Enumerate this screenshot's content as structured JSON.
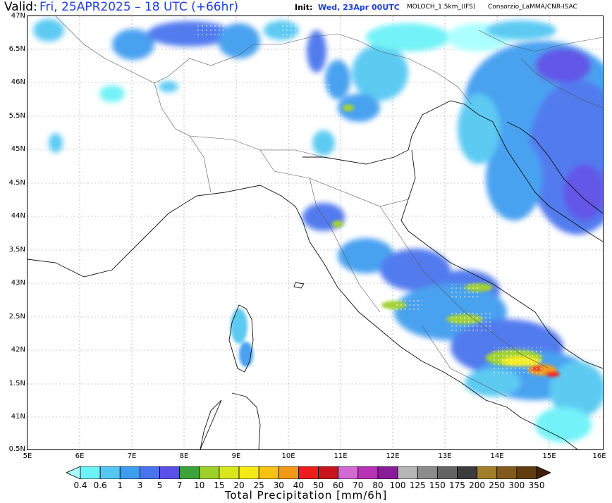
{
  "header": {
    "valid_label": "Valid:",
    "valid_value": "Fri, 25APR2025 – 18 UTC (+66hr)",
    "init_label": "Init:",
    "init_value": "Wed, 23Apr 00UTC",
    "model": "MOLOCH_1.5km_(IFS)",
    "source": "Consorzio_LaMMA/CNR-ISAC"
  },
  "map": {
    "lat_labels": [
      "47N",
      "6.5N",
      "46N",
      "5.5N",
      "45N",
      "4.5N",
      "44N",
      "3.5N",
      "43N",
      "2.5N",
      "42N",
      "1.5N",
      "41N",
      "0.5N"
    ],
    "lon_labels": [
      "5E",
      "6E",
      "7E",
      "8E",
      "9E",
      "10E",
      "11E",
      "12E",
      "13E",
      "14E",
      "15E",
      "16E"
    ],
    "lat_range": [
      40.5,
      47
    ],
    "lon_range": [
      5,
      16
    ],
    "grid": true
  },
  "colorbar": {
    "title": "Total Precipitation [mm/6h]",
    "ticks": [
      "0.4",
      "0.6",
      "1",
      "3",
      "5",
      "7",
      "10",
      "15",
      "20",
      "25",
      "30",
      "40",
      "50",
      "60",
      "70",
      "80",
      "100",
      "125",
      "150",
      "175",
      "200",
      "250",
      "300",
      "350"
    ],
    "colors": [
      "#a8ffff",
      "#6cf2f7",
      "#54c8f2",
      "#3f9df0",
      "#4a74ee",
      "#5a4fe6",
      "#3ca23c",
      "#9ed02a",
      "#d7e61d",
      "#f5ea14",
      "#f7c212",
      "#f29a18",
      "#ee1c1c",
      "#c8141c",
      "#d26ad0",
      "#b832b4",
      "#8a1c9a",
      "#b6b6b6",
      "#8c8c8c",
      "#646464",
      "#3c3c3c",
      "#a27d2a",
      "#825b1c",
      "#623d10",
      "#3f2008"
    ]
  },
  "title_colors": {
    "valid": "#1f3fe0",
    "init": "#1f3fe0"
  }
}
